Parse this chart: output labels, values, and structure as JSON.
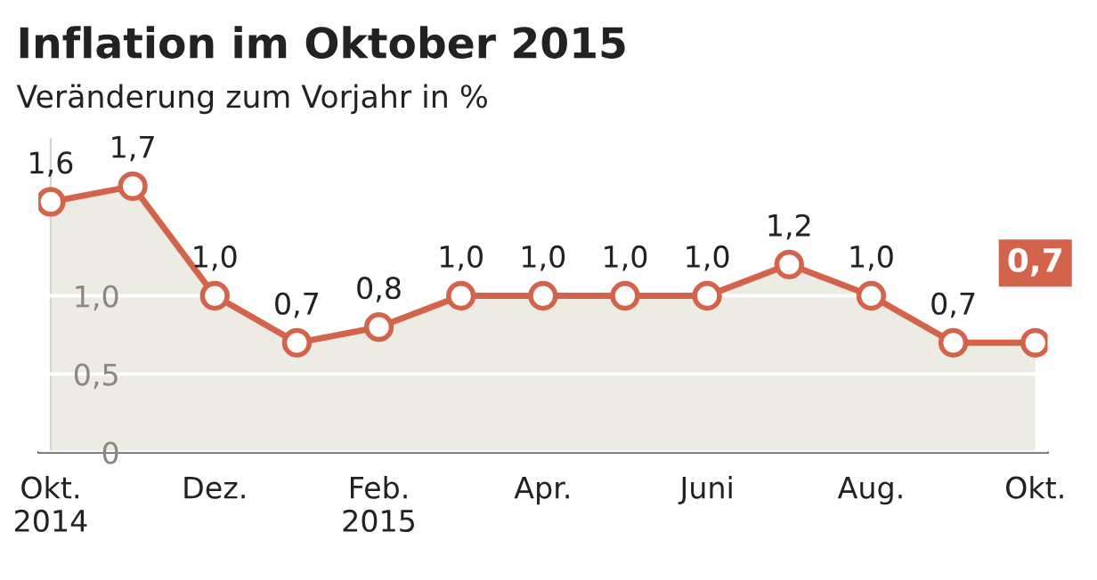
{
  "chart_data": {
    "type": "area",
    "title": "Inflation im Oktober 2015",
    "subtitle": "Veränderung zum Vorjahr in %",
    "categories": [
      "Okt.\n2014",
      null,
      "Dez.",
      null,
      "Feb.\n2015",
      null,
      "Apr.",
      null,
      "Juni",
      null,
      "Aug.",
      null,
      "Okt."
    ],
    "series": [
      {
        "color": "#d4634b",
        "values": [
          1.6,
          1.7,
          1.0,
          0.7,
          0.8,
          1.0,
          1.0,
          1.0,
          1.0,
          1.2,
          1.0,
          0.7,
          0.7
        ],
        "value_labels": [
          "1,6",
          "1,7",
          "1,0",
          "0,7",
          "0,8",
          "1,0",
          "1,0",
          "1,0",
          "1,0",
          "1,2",
          "1,0",
          "0,7",
          "0,7"
        ]
      }
    ],
    "yticks": [
      0,
      {
        "value": 0.5,
        "label": "0,5"
      },
      {
        "value": 1.0,
        "label": "1,0"
      }
    ],
    "ylim": [
      0,
      2.0
    ],
    "grid": "y",
    "marker": "circle",
    "line_style": "solid",
    "legend": false
  }
}
